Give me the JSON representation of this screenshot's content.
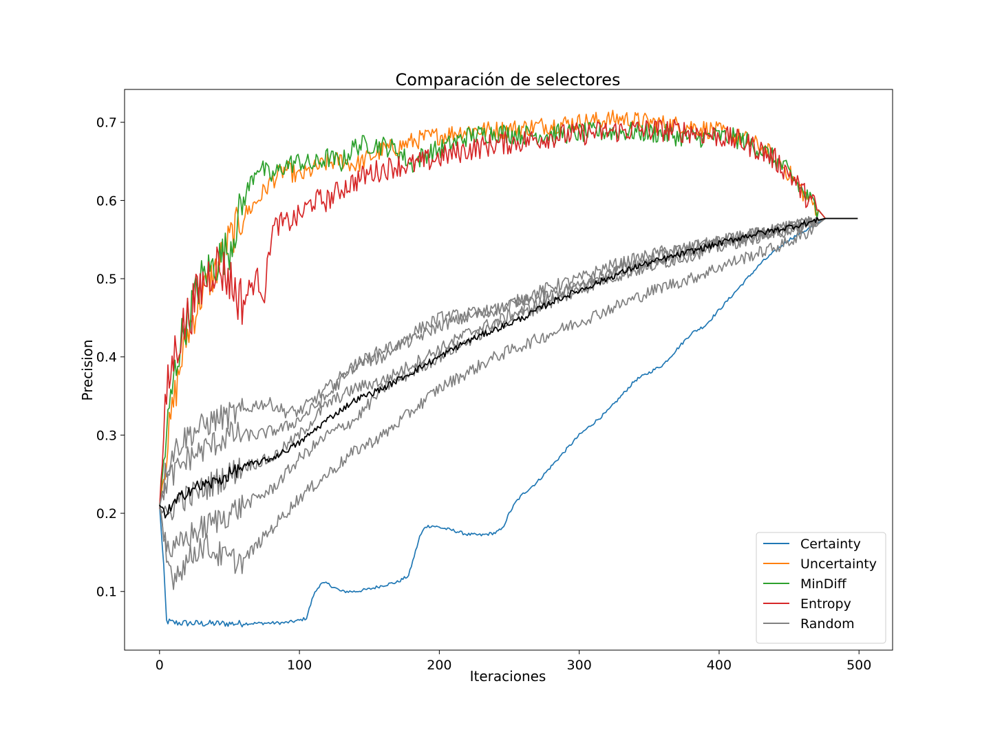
{
  "chart_data": {
    "type": "line",
    "title": "Comparación de selectores",
    "xlabel": "Iteraciones",
    "ylabel": "Precision",
    "xlim": [
      -25,
      524
    ],
    "ylim": [
      0.025,
      0.742
    ],
    "xticks": [
      0,
      100,
      200,
      300,
      400,
      500
    ],
    "xtick_labels": [
      "0",
      "100",
      "200",
      "300",
      "400",
      "500"
    ],
    "yticks": [
      0.1,
      0.2,
      0.3,
      0.4,
      0.5,
      0.6,
      0.7
    ],
    "ytick_labels": [
      "0.1",
      "0.2",
      "0.3",
      "0.4",
      "0.5",
      "0.6",
      "0.7"
    ],
    "grid": false,
    "legend_position": "lower-right",
    "series": [
      {
        "name": "Certainty",
        "color": "#1f77b4",
        "legend": true,
        "noise": 0.002,
        "x": [
          0,
          3,
          5,
          10,
          30,
          60,
          90,
          100,
          105,
          110,
          115,
          120,
          130,
          140,
          150,
          160,
          170,
          178,
          182,
          186,
          190,
          195,
          200,
          210,
          220,
          230,
          240,
          245,
          250,
          255,
          260,
          270,
          280,
          290,
          300,
          310,
          320,
          330,
          340,
          350,
          360,
          370,
          380,
          390,
          400,
          410,
          420,
          430,
          440,
          450,
          460,
          470,
          476,
          499
        ],
        "y": [
          0.21,
          0.13,
          0.062,
          0.06,
          0.059,
          0.059,
          0.06,
          0.063,
          0.066,
          0.095,
          0.11,
          0.11,
          0.1,
          0.1,
          0.103,
          0.108,
          0.112,
          0.12,
          0.145,
          0.17,
          0.183,
          0.184,
          0.182,
          0.178,
          0.173,
          0.172,
          0.175,
          0.18,
          0.2,
          0.215,
          0.225,
          0.24,
          0.26,
          0.28,
          0.3,
          0.315,
          0.33,
          0.35,
          0.37,
          0.38,
          0.39,
          0.41,
          0.43,
          0.44,
          0.46,
          0.48,
          0.5,
          0.52,
          0.535,
          0.55,
          0.56,
          0.57,
          0.577,
          0.577
        ]
      },
      {
        "name": "Uncertainty",
        "color": "#ff7f0e",
        "legend": true,
        "noise": 0.012,
        "x": [
          0,
          5,
          10,
          15,
          20,
          30,
          40,
          50,
          60,
          70,
          80,
          90,
          100,
          110,
          120,
          130,
          140,
          150,
          160,
          170,
          180,
          190,
          200,
          220,
          240,
          260,
          280,
          300,
          320,
          330,
          340,
          360,
          380,
          400,
          410,
          420,
          430,
          440,
          450,
          460,
          470,
          476,
          499
        ],
        "y": [
          0.21,
          0.28,
          0.34,
          0.39,
          0.43,
          0.48,
          0.51,
          0.55,
          0.58,
          0.6,
          0.625,
          0.64,
          0.63,
          0.64,
          0.648,
          0.652,
          0.645,
          0.655,
          0.665,
          0.668,
          0.675,
          0.68,
          0.683,
          0.69,
          0.69,
          0.693,
          0.697,
          0.7,
          0.703,
          0.705,
          0.702,
          0.698,
          0.695,
          0.688,
          0.683,
          0.677,
          0.668,
          0.655,
          0.635,
          0.61,
          0.59,
          0.577,
          0.577
        ]
      },
      {
        "name": "MinDiff",
        "color": "#2ca02c",
        "legend": true,
        "noise": 0.013,
        "x": [
          0,
          5,
          10,
          15,
          20,
          30,
          40,
          50,
          60,
          70,
          80,
          90,
          100,
          110,
          120,
          130,
          140,
          150,
          160,
          170,
          180,
          190,
          200,
          220,
          240,
          260,
          280,
          300,
          320,
          340,
          360,
          380,
          400,
          410,
          420,
          430,
          440,
          450,
          460,
          470,
          476,
          499
        ],
        "y": [
          0.21,
          0.3,
          0.37,
          0.42,
          0.45,
          0.5,
          0.52,
          0.54,
          0.6,
          0.645,
          0.63,
          0.645,
          0.65,
          0.645,
          0.655,
          0.648,
          0.67,
          0.672,
          0.67,
          0.665,
          0.645,
          0.66,
          0.665,
          0.682,
          0.687,
          0.684,
          0.685,
          0.686,
          0.688,
          0.688,
          0.685,
          0.68,
          0.682,
          0.68,
          0.675,
          0.665,
          0.652,
          0.635,
          0.61,
          0.59,
          0.577,
          0.577
        ]
      },
      {
        "name": "Entropy",
        "color": "#d62728",
        "legend": true,
        "noise": 0.015,
        "x": [
          0,
          5,
          10,
          15,
          20,
          30,
          40,
          50,
          55,
          60,
          65,
          70,
          75,
          80,
          85,
          90,
          100,
          110,
          120,
          130,
          140,
          150,
          160,
          170,
          180,
          190,
          200,
          220,
          240,
          260,
          280,
          300,
          320,
          340,
          360,
          380,
          400,
          410,
          420,
          430,
          440,
          450,
          460,
          470,
          476,
          499
        ],
        "y": [
          0.21,
          0.35,
          0.4,
          0.43,
          0.45,
          0.49,
          0.52,
          0.5,
          0.48,
          0.47,
          0.49,
          0.5,
          0.48,
          0.56,
          0.57,
          0.57,
          0.58,
          0.6,
          0.6,
          0.615,
          0.625,
          0.635,
          0.64,
          0.645,
          0.645,
          0.65,
          0.655,
          0.665,
          0.672,
          0.676,
          0.682,
          0.685,
          0.688,
          0.69,
          0.69,
          0.688,
          0.682,
          0.678,
          0.672,
          0.664,
          0.652,
          0.635,
          0.61,
          0.59,
          0.577,
          0.577
        ]
      },
      {
        "name": "Random",
        "color": "#808080",
        "legend": true,
        "noise": 0.008,
        "x": [
          0,
          5,
          10,
          15,
          20,
          30,
          40,
          50,
          60,
          70,
          80,
          90,
          100,
          120,
          140,
          160,
          180,
          200,
          220,
          240,
          260,
          280,
          300,
          320,
          340,
          360,
          380,
          400,
          420,
          440,
          460,
          476,
          499
        ],
        "y": [
          0.21,
          0.26,
          0.28,
          0.29,
          0.3,
          0.31,
          0.32,
          0.325,
          0.33,
          0.34,
          0.34,
          0.33,
          0.33,
          0.36,
          0.39,
          0.41,
          0.42,
          0.44,
          0.45,
          0.46,
          0.475,
          0.49,
          0.5,
          0.515,
          0.525,
          0.535,
          0.54,
          0.548,
          0.555,
          0.562,
          0.57,
          0.577,
          0.577
        ]
      },
      {
        "name": "",
        "color": "#808080",
        "legend": false,
        "noise": 0.008,
        "x": [
          0,
          5,
          10,
          15,
          20,
          30,
          40,
          50,
          60,
          70,
          80,
          90,
          100,
          120,
          140,
          160,
          180,
          200,
          220,
          240,
          260,
          280,
          300,
          320,
          340,
          360,
          380,
          400,
          420,
          440,
          460,
          476,
          499
        ],
        "y": [
          0.21,
          0.24,
          0.25,
          0.26,
          0.27,
          0.28,
          0.29,
          0.3,
          0.3,
          0.3,
          0.305,
          0.31,
          0.32,
          0.35,
          0.39,
          0.4,
          0.43,
          0.45,
          0.455,
          0.46,
          0.47,
          0.48,
          0.49,
          0.505,
          0.515,
          0.525,
          0.535,
          0.545,
          0.552,
          0.56,
          0.568,
          0.577,
          0.577
        ]
      },
      {
        "name": "",
        "color": "#808080",
        "legend": false,
        "noise": 0.008,
        "x": [
          0,
          5,
          10,
          15,
          20,
          30,
          40,
          50,
          60,
          70,
          80,
          90,
          100,
          120,
          140,
          160,
          180,
          200,
          220,
          240,
          260,
          280,
          300,
          320,
          340,
          360,
          380,
          400,
          420,
          440,
          460,
          476,
          499
        ],
        "y": [
          0.21,
          0.19,
          0.21,
          0.22,
          0.22,
          0.23,
          0.24,
          0.25,
          0.26,
          0.265,
          0.27,
          0.285,
          0.3,
          0.34,
          0.36,
          0.37,
          0.39,
          0.41,
          0.43,
          0.445,
          0.46,
          0.475,
          0.49,
          0.505,
          0.52,
          0.53,
          0.54,
          0.548,
          0.555,
          0.562,
          0.57,
          0.577,
          0.577
        ]
      },
      {
        "name": "",
        "color": "#808080",
        "legend": false,
        "noise": 0.008,
        "x": [
          0,
          5,
          10,
          15,
          20,
          30,
          40,
          50,
          60,
          70,
          80,
          90,
          100,
          120,
          140,
          160,
          180,
          200,
          220,
          240,
          260,
          280,
          300,
          320,
          340,
          360,
          380,
          400,
          420,
          440,
          460,
          476,
          499
        ],
        "y": [
          0.21,
          0.16,
          0.15,
          0.16,
          0.17,
          0.18,
          0.19,
          0.2,
          0.21,
          0.22,
          0.23,
          0.25,
          0.27,
          0.3,
          0.32,
          0.36,
          0.38,
          0.4,
          0.42,
          0.44,
          0.455,
          0.47,
          0.485,
          0.5,
          0.51,
          0.52,
          0.53,
          0.54,
          0.55,
          0.558,
          0.566,
          0.577,
          0.577
        ]
      },
      {
        "name": "",
        "color": "#808080",
        "legend": false,
        "noise": 0.008,
        "x": [
          0,
          5,
          10,
          15,
          20,
          30,
          40,
          50,
          60,
          70,
          80,
          90,
          100,
          120,
          140,
          160,
          180,
          200,
          220,
          240,
          260,
          280,
          300,
          320,
          340,
          360,
          380,
          400,
          420,
          440,
          460,
          476,
          499
        ],
        "y": [
          0.21,
          0.14,
          0.12,
          0.13,
          0.14,
          0.16,
          0.15,
          0.14,
          0.14,
          0.16,
          0.18,
          0.2,
          0.22,
          0.25,
          0.28,
          0.3,
          0.33,
          0.36,
          0.38,
          0.4,
          0.415,
          0.43,
          0.445,
          0.46,
          0.475,
          0.49,
          0.5,
          0.515,
          0.528,
          0.54,
          0.555,
          0.577,
          0.577
        ]
      },
      {
        "name": "",
        "color": "#000000",
        "legend": false,
        "noise": 0.004,
        "x": [
          0,
          5,
          10,
          15,
          20,
          30,
          40,
          50,
          60,
          70,
          80,
          90,
          100,
          120,
          140,
          160,
          180,
          200,
          220,
          240,
          260,
          280,
          300,
          320,
          340,
          360,
          380,
          400,
          420,
          440,
          460,
          476,
          499
        ],
        "y": [
          0.21,
          0.2,
          0.21,
          0.22,
          0.23,
          0.235,
          0.24,
          0.25,
          0.26,
          0.265,
          0.27,
          0.28,
          0.29,
          0.32,
          0.345,
          0.36,
          0.38,
          0.4,
          0.42,
          0.435,
          0.45,
          0.47,
          0.485,
          0.5,
          0.515,
          0.525,
          0.535,
          0.545,
          0.555,
          0.562,
          0.57,
          0.577,
          0.577
        ]
      }
    ]
  }
}
